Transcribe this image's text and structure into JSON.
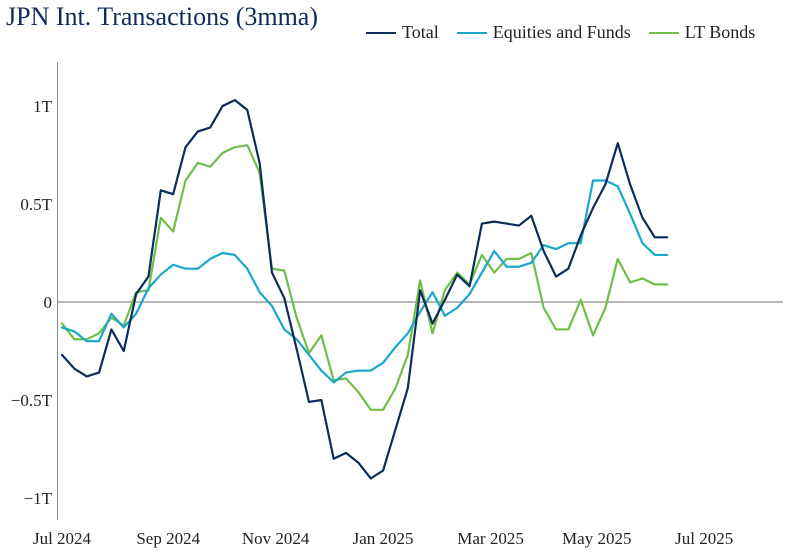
{
  "chart_data": {
    "type": "line",
    "title": "JPN Int. Transactions (3mma)",
    "xlabel": "",
    "ylabel": "",
    "ylim": [
      -1.1,
      1.22
    ],
    "x_range": [
      0,
      51
    ],
    "y_ticks": [
      1,
      0.5,
      0,
      -0.5,
      -1
    ],
    "y_tick_labels": [
      "1T",
      "0.5T",
      "0",
      "−0.5T",
      "−1T"
    ],
    "x_ticks": [
      0,
      8.6,
      17.3,
      26,
      34.7,
      43.3,
      52
    ],
    "x_tick_labels": [
      "Jul 2024",
      "Sep 2024",
      "Nov 2024",
      "Jan 2025",
      "Mar 2025",
      "May 2025",
      "Jul 2025"
    ],
    "zero_line": true,
    "legend_position": "top-right",
    "series": [
      {
        "name": "Total",
        "color": "#0d2c5b",
        "values": [
          -0.27,
          -0.34,
          -0.38,
          -0.36,
          -0.14,
          -0.25,
          0.04,
          0.13,
          0.57,
          0.55,
          0.79,
          0.87,
          0.89,
          1.0,
          1.03,
          0.98,
          0.71,
          0.15,
          0.02,
          -0.24,
          -0.51,
          -0.5,
          -0.8,
          -0.77,
          -0.82,
          -0.9,
          -0.86,
          -0.65,
          -0.44,
          0.06,
          -0.11,
          0.01,
          0.14,
          0.08,
          0.4,
          0.41,
          0.4,
          0.39,
          0.44,
          0.26,
          0.13,
          0.17,
          0.34,
          0.48,
          0.6,
          0.81,
          0.6,
          0.43,
          0.33,
          0.33
        ]
      },
      {
        "name": "Equities and Funds",
        "color": "#19a7cc",
        "values": [
          -0.13,
          -0.15,
          -0.2,
          -0.2,
          -0.06,
          -0.13,
          -0.06,
          0.07,
          0.14,
          0.19,
          0.17,
          0.17,
          0.22,
          0.25,
          0.24,
          0.17,
          0.05,
          -0.02,
          -0.14,
          -0.19,
          -0.27,
          -0.35,
          -0.41,
          -0.36,
          -0.35,
          -0.35,
          -0.31,
          -0.23,
          -0.16,
          -0.05,
          0.05,
          -0.07,
          -0.03,
          0.04,
          0.15,
          0.26,
          0.18,
          0.18,
          0.2,
          0.29,
          0.27,
          0.3,
          0.3,
          0.62,
          0.62,
          0.59,
          0.45,
          0.3,
          0.24,
          0.24
        ]
      },
      {
        "name": "LT Bonds",
        "color": "#6fbe4a",
        "values": [
          -0.11,
          -0.19,
          -0.19,
          -0.16,
          -0.08,
          -0.12,
          0.05,
          0.06,
          0.43,
          0.36,
          0.62,
          0.71,
          0.69,
          0.76,
          0.79,
          0.8,
          0.66,
          0.17,
          0.16,
          -0.08,
          -0.26,
          -0.17,
          -0.4,
          -0.39,
          -0.46,
          -0.55,
          -0.55,
          -0.44,
          -0.27,
          0.11,
          -0.16,
          0.06,
          0.15,
          0.09,
          0.24,
          0.15,
          0.22,
          0.22,
          0.25,
          -0.03,
          -0.14,
          -0.14,
          0.01,
          -0.17,
          -0.03,
          0.22,
          0.1,
          0.12,
          0.09,
          0.09
        ]
      }
    ]
  }
}
